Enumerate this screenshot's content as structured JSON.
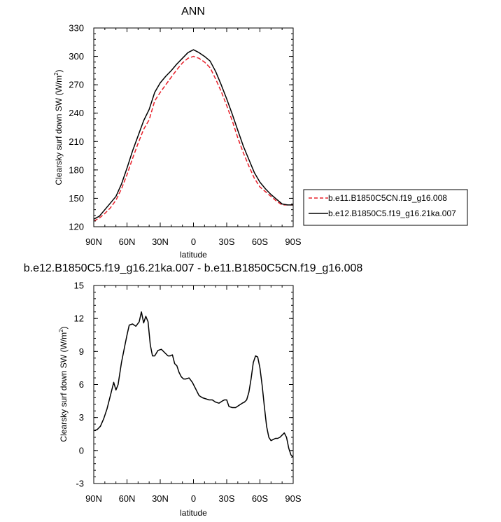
{
  "chart_data": [
    {
      "type": "line",
      "title": "ANN",
      "xlabel": "latitude",
      "ylabel": "Clearsky surf down SW (W/m",
      "ylabel_sup": "2",
      "ylabel_tail": ")",
      "xlim": [
        90,
        -90
      ],
      "ylim": [
        120,
        330
      ],
      "yticks": [
        120,
        150,
        180,
        210,
        240,
        270,
        300,
        330
      ],
      "yticks_fmt": [
        "120",
        "150",
        "180",
        "210",
        "240",
        "270",
        "300",
        "330"
      ],
      "xticks": [
        90,
        60,
        30,
        0,
        -30,
        -60,
        -90
      ],
      "xtick_labels": [
        "90N",
        "60N",
        "30N",
        "0",
        "30S",
        "60S",
        "90S"
      ],
      "legend_position": "right",
      "series": [
        {
          "name": "b.e11.B1850C5CN.f19_g16.008",
          "color": "#e8202a",
          "dash": "dashed",
          "x": [
            90,
            85,
            80,
            75,
            70,
            65,
            60,
            55,
            50,
            45,
            40,
            35,
            30,
            25,
            20,
            15,
            10,
            5,
            0,
            -5,
            -10,
            -15,
            -20,
            -25,
            -30,
            -35,
            -40,
            -45,
            -50,
            -55,
            -60,
            -65,
            -70,
            -75,
            -80,
            -85,
            -90
          ],
          "y": [
            126,
            129,
            134,
            140,
            148,
            160,
            175,
            192,
            208,
            223,
            233,
            253,
            262,
            270,
            278,
            286,
            293,
            298,
            300,
            298,
            294,
            288,
            276,
            263,
            248,
            232,
            214,
            198,
            184,
            171,
            162,
            157,
            152,
            147,
            143,
            143,
            143
          ]
        },
        {
          "name": "b.e12.B1850C5.f19_g16.21ka.007",
          "color": "#000000",
          "dash": "solid",
          "x": [
            90,
            85,
            80,
            75,
            70,
            65,
            60,
            55,
            50,
            45,
            40,
            35,
            30,
            25,
            20,
            15,
            10,
            5,
            0,
            -5,
            -10,
            -15,
            -20,
            -25,
            -30,
            -35,
            -40,
            -45,
            -50,
            -55,
            -60,
            -65,
            -70,
            -75,
            -80,
            -85,
            -90
          ],
          "y": [
            128,
            131,
            138,
            145,
            152,
            165,
            182,
            200,
            216,
            232,
            244,
            262,
            272,
            279,
            285,
            292,
            298,
            304,
            307,
            304,
            300,
            295,
            284,
            270,
            255,
            239,
            222,
            205,
            191,
            177,
            167,
            160,
            154,
            149,
            144,
            143,
            143
          ]
        }
      ]
    },
    {
      "type": "line",
      "title": "b.e12.B1850C5.f19_g16.21ka.007 - b.e11.B1850C5CN.f19_g16.008",
      "xlabel": "latitude",
      "ylabel": "Clearsky surf down SW (W/m",
      "ylabel_sup": "2",
      "ylabel_tail": ")",
      "xlim": [
        90,
        -90
      ],
      "ylim": [
        -3,
        15
      ],
      "yticks": [
        -3,
        0,
        3,
        6,
        9,
        12,
        15
      ],
      "yticks_fmt": [
        "-3",
        "0",
        "3",
        "6",
        "9",
        "12",
        "15"
      ],
      "xticks": [
        90,
        60,
        30,
        0,
        -30,
        -60,
        -90
      ],
      "xtick_labels": [
        "90N",
        "60N",
        "30N",
        "0",
        "30S",
        "60S",
        "90S"
      ],
      "series": [
        {
          "name": "difference",
          "color": "#000000",
          "dash": "solid",
          "x": [
            90,
            87,
            84,
            81,
            78,
            75,
            72,
            70,
            68,
            65,
            62,
            60,
            58,
            55,
            52,
            49,
            47,
            45,
            43,
            41,
            39,
            37,
            35,
            32,
            29,
            26,
            23,
            21,
            19,
            17,
            15,
            13,
            11,
            9,
            7,
            4,
            1,
            -2,
            -5,
            -8,
            -11,
            -14,
            -17,
            -20,
            -23,
            -26,
            -28,
            -30,
            -32,
            -35,
            -38,
            -41,
            -44,
            -46,
            -48,
            -50,
            -52,
            -54,
            -56,
            -58,
            -60,
            -62,
            -64,
            -66,
            -68,
            -70,
            -72,
            -74,
            -76,
            -78,
            -80,
            -82,
            -84,
            -86,
            -88,
            -90
          ],
          "y": [
            1.8,
            1.9,
            2.2,
            2.9,
            3.8,
            5.0,
            6.2,
            5.5,
            6.0,
            8.0,
            9.5,
            10.5,
            11.4,
            11.5,
            11.3,
            11.7,
            12.6,
            11.6,
            12.2,
            11.7,
            9.6,
            8.6,
            8.6,
            9.1,
            9.2,
            8.9,
            8.6,
            8.6,
            8.7,
            7.9,
            7.7,
            7.1,
            6.7,
            6.5,
            6.5,
            6.6,
            6.2,
            5.6,
            5.0,
            4.8,
            4.7,
            4.6,
            4.6,
            4.4,
            4.3,
            4.5,
            4.6,
            4.6,
            4.0,
            3.9,
            3.9,
            4.1,
            4.3,
            4.4,
            4.6,
            5.3,
            6.5,
            8.0,
            8.6,
            8.5,
            7.5,
            5.9,
            4.0,
            2.2,
            1.2,
            0.9,
            1.0,
            1.1,
            1.1,
            1.2,
            1.4,
            1.6,
            1.2,
            0.2,
            -0.4,
            -0.6
          ]
        }
      ]
    }
  ]
}
